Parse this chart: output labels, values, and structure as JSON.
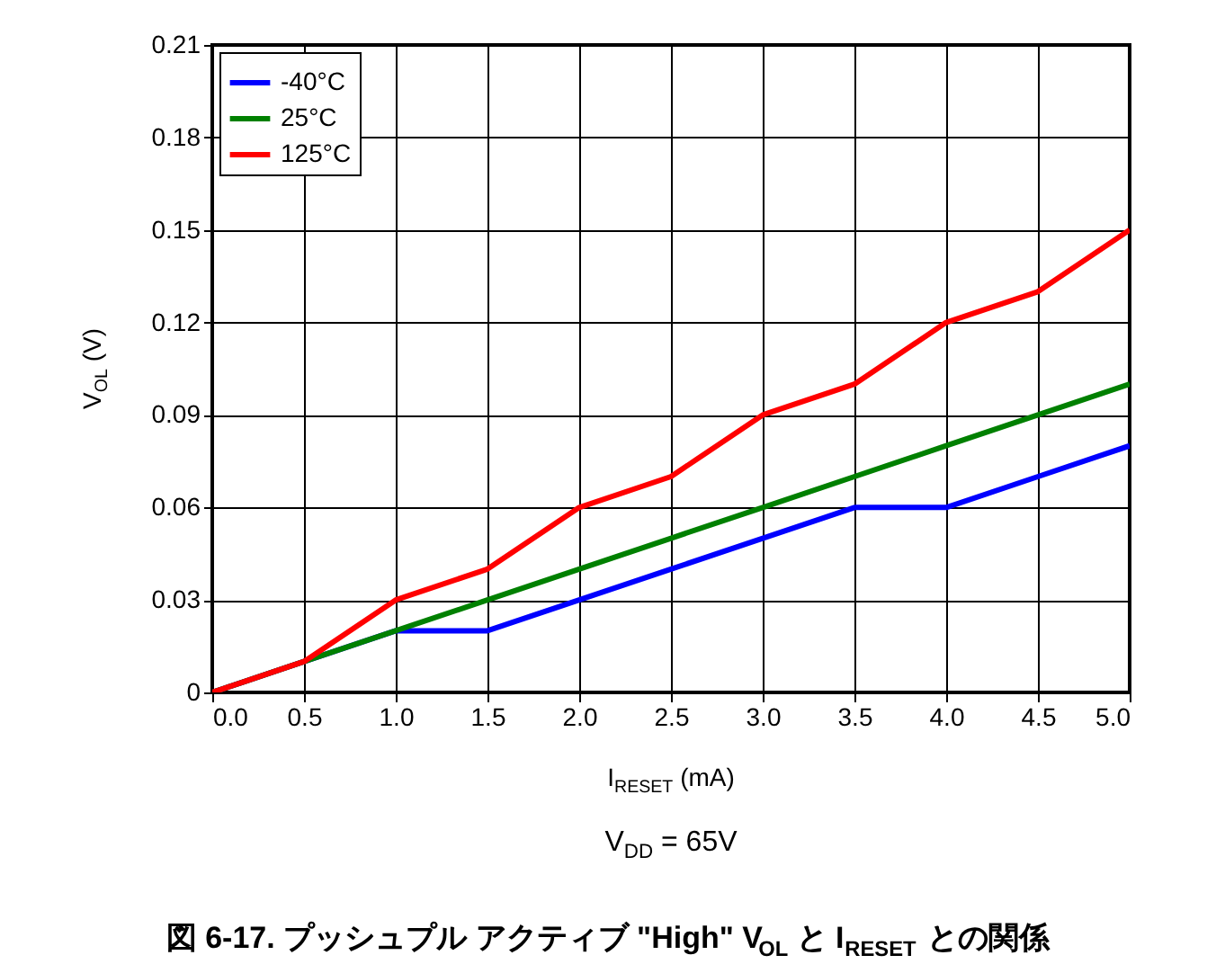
{
  "chart_data": {
    "type": "line",
    "title": "図 6-17. プッシュプル アクティブ \"High\" V$_{OL}$ と I$_{RESET}$ との関係",
    "xlabel": "I$_{RESET}$ (mA)",
    "ylabel": "V$_{OL}$ (V)",
    "annotations": [
      "V$_{DD}$ = 65V"
    ],
    "x": [
      0,
      0.5,
      1,
      1.5,
      2,
      2.5,
      3,
      3.5,
      4,
      4.5,
      5
    ],
    "series": [
      {
        "name": "-40°C",
        "color": "#0000ff",
        "values": [
          0,
          0.01,
          0.02,
          0.02,
          0.03,
          0.04,
          0.05,
          0.06,
          0.06,
          0.07,
          0.08
        ]
      },
      {
        "name": "25°C",
        "color": "#008000",
        "values": [
          0,
          0.01,
          0.02,
          0.03,
          0.04,
          0.05,
          0.06,
          0.07,
          0.08,
          0.09,
          0.1
        ]
      },
      {
        "name": "125°C",
        "color": "#ff0000",
        "values": [
          0,
          0.01,
          0.03,
          0.04,
          0.06,
          0.07,
          0.09,
          0.1,
          0.12,
          0.13,
          0.15
        ]
      }
    ],
    "xlim": [
      0,
      5
    ],
    "xticks": [
      {
        "value": 0,
        "label": "0.0"
      },
      {
        "value": 0.5,
        "label": "0.5"
      },
      {
        "value": 1,
        "label": "1.0"
      },
      {
        "value": 1.5,
        "label": "1.5"
      },
      {
        "value": 2,
        "label": "2.0"
      },
      {
        "value": 2.5,
        "label": "2.5"
      },
      {
        "value": 3,
        "label": "3.0"
      },
      {
        "value": 3.5,
        "label": "3.5"
      },
      {
        "value": 4,
        "label": "4.0"
      },
      {
        "value": 4.5,
        "label": "4.5"
      },
      {
        "value": 5,
        "label": "5.0"
      }
    ],
    "ylim": [
      0,
      0.21
    ],
    "yticks": [
      0,
      0.03,
      0.06,
      0.09,
      0.12,
      0.15,
      0.18,
      0.21
    ],
    "grid": true,
    "legend": "top left",
    "marker": "none",
    "line_style": "solid"
  }
}
